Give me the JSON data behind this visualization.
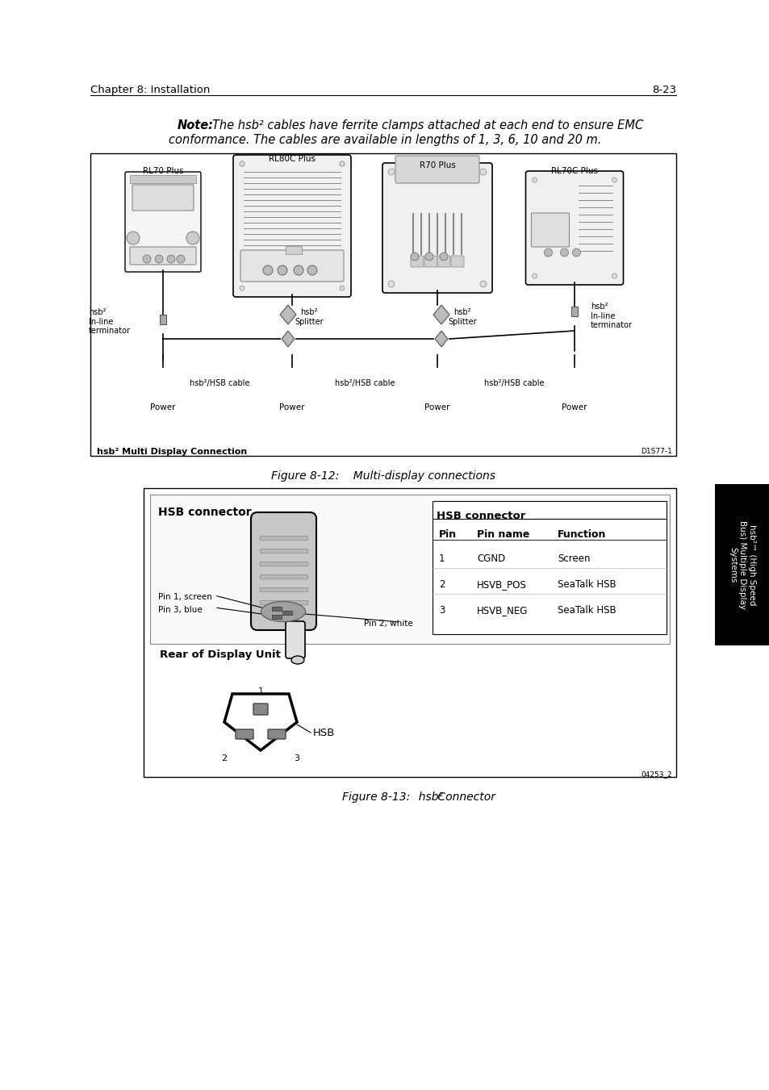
{
  "page_header_left": "Chapter 8: Installation",
  "page_header_right": "8-23",
  "note_bold": "Note:",
  "note_line1": "The hsb² cables have ferrite clamps attached at each end to ensure EMC",
  "note_line2": "conformance. The cables are available in lengths of 1, 3, 6, 10 and 20 m.",
  "fig1_caption": "Figure 8-12:    Multi-display connections",
  "fig2_caption": "Figure 8-13:",
  "fig2_caption_italic": "hsb²",
  "fig2_caption2": " Connector",
  "fig1_box_label": "hsb² Multi Display Connection",
  "fig1_code": "D1S77-1",
  "fig2_code": "04253_2",
  "devices": [
    "RL70 Plus",
    "RL80C Plus",
    "R70 Plus",
    "RL70C Plus"
  ],
  "splitter_labels": [
    "hsb²\nSplitter",
    "hsb²\nSplitter"
  ],
  "terminator_left": "hsb²\nIn-line\nterminator",
  "terminator_right": "hsb²\nIn-line\nterminator",
  "cable_labels": [
    "hsb²/HSB cable",
    "hsb²/HSB cable",
    "hsb²/HSB cable"
  ],
  "power_labels": [
    "Power",
    "Power",
    "Power",
    "Power"
  ],
  "inline_left": "hsb²\nIn-line\nterminator",
  "hsb_connector_title": "HSB connector",
  "table_title": "HSB connector",
  "table_headers": [
    "Pin",
    "Pin name",
    "Function"
  ],
  "table_rows": [
    [
      "1",
      "CGND",
      "Screen"
    ],
    [
      "2",
      "HSVB_POS",
      "SeaTalk HSB"
    ],
    [
      "3",
      "HSVB_NEG",
      "SeaTalk HSB"
    ]
  ],
  "connector_labels": [
    "Pin 1, screen",
    "Pin 3, blue",
    "Pin 2, white"
  ],
  "rear_label": "Rear of Display Unit",
  "hsb_label": "HSB",
  "sidebar_text": "hsb²™ (High Speed\nBus) Multiple Display\nSystems",
  "bg_color": "#ffffff",
  "sidebar_bg": "#000000",
  "sidebar_text_color": "#ffffff"
}
